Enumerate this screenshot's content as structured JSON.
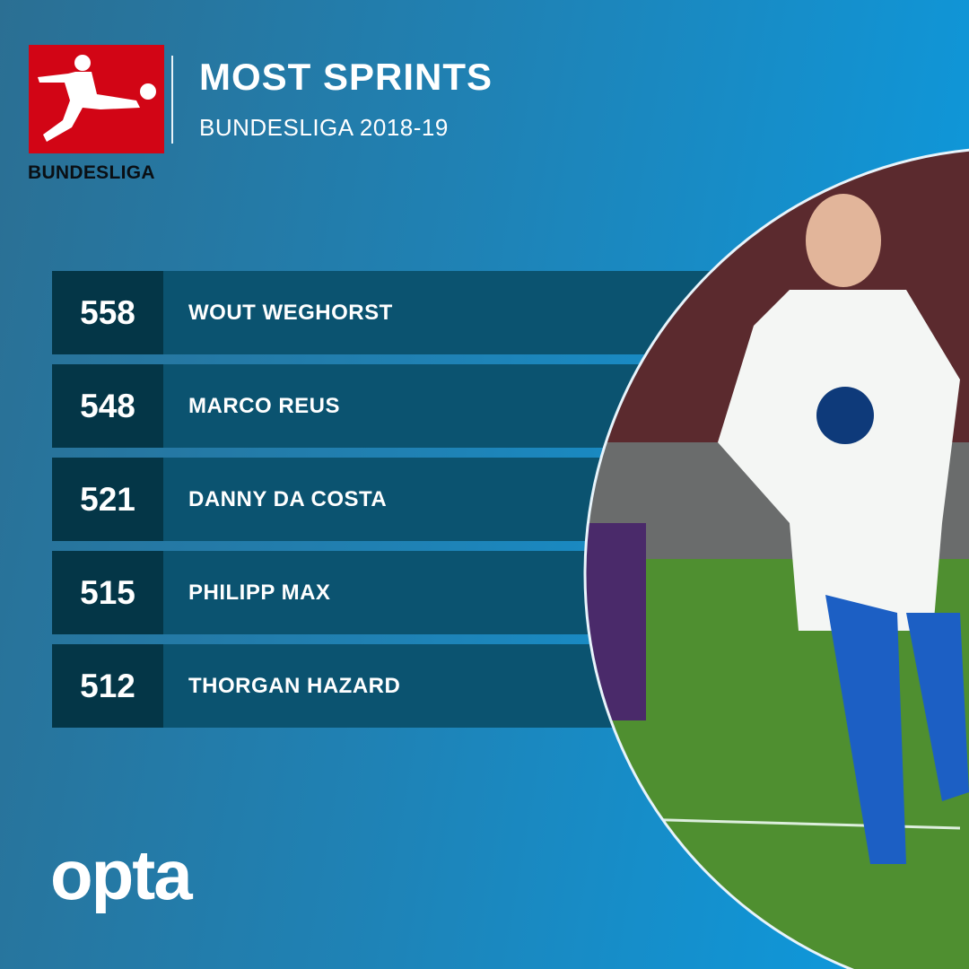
{
  "header": {
    "title": "MOST SPRINTS",
    "subtitle": "BUNDESLIGA 2018-19",
    "logo_text": "BUNDESLIGA"
  },
  "ranking": [
    {
      "value": "558",
      "player": "WOUT WEGHORST"
    },
    {
      "value": "548",
      "player": "MARCO REUS"
    },
    {
      "value": "521",
      "player": "DANNY DA COSTA"
    },
    {
      "value": "515",
      "player": "PHILIPP MAX"
    },
    {
      "value": "512",
      "player": "THORGAN HAZARD"
    }
  ],
  "footer": {
    "brand": "opta"
  },
  "colors": {
    "logo_red": "#d20515",
    "number_cell": "#043647",
    "name_bar": "#0b5370",
    "background_start": "#2b6f93",
    "background_end": "#0b9ce2"
  }
}
